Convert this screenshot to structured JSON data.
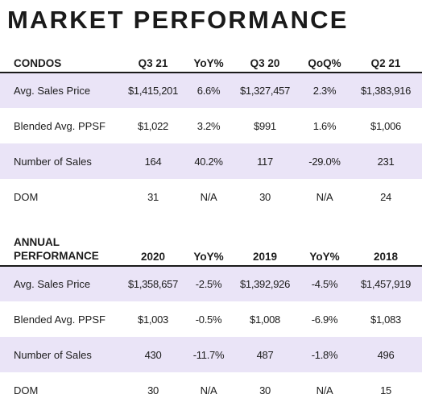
{
  "title": "MARKET PERFORMANCE",
  "quarterly": {
    "headers": [
      "CONDOS",
      "Q3 21",
      "YoY%",
      "Q3 20",
      "QoQ%",
      "Q2 21"
    ],
    "rows": [
      [
        "Avg. Sales Price",
        "$1,415,201",
        "6.6%",
        "$1,327,457",
        "2.3%",
        "$1,383,916"
      ],
      [
        "Blended Avg. PPSF",
        "$1,022",
        "3.2%",
        "$991",
        "1.6%",
        "$1,006"
      ],
      [
        "Number of Sales",
        "164",
        "40.2%",
        "117",
        "-29.0%",
        "231"
      ],
      [
        "DOM",
        "31",
        "N/A",
        "30",
        "N/A",
        "24"
      ]
    ]
  },
  "annual": {
    "headers": [
      "ANNUAL",
      "PERFORMANCE",
      "2020",
      "YoY%",
      "2019",
      "YoY%",
      "2018"
    ],
    "rows": [
      [
        "Avg. Sales Price",
        "$1,358,657",
        "-2.5%",
        "$1,392,926",
        "-4.5%",
        "$1,457,919"
      ],
      [
        "Blended Avg. PPSF",
        "$1,003",
        "-0.5%",
        "$1,008",
        "-6.9%",
        "$1,083"
      ],
      [
        "Number of Sales",
        "430",
        "-11.7%",
        "487",
        "-1.8%",
        "496"
      ],
      [
        "DOM",
        "30",
        "N/A",
        "30",
        "N/A",
        "15"
      ]
    ]
  },
  "colors": {
    "row_shade": "#eae4f7",
    "text": "#1c1c1c"
  }
}
